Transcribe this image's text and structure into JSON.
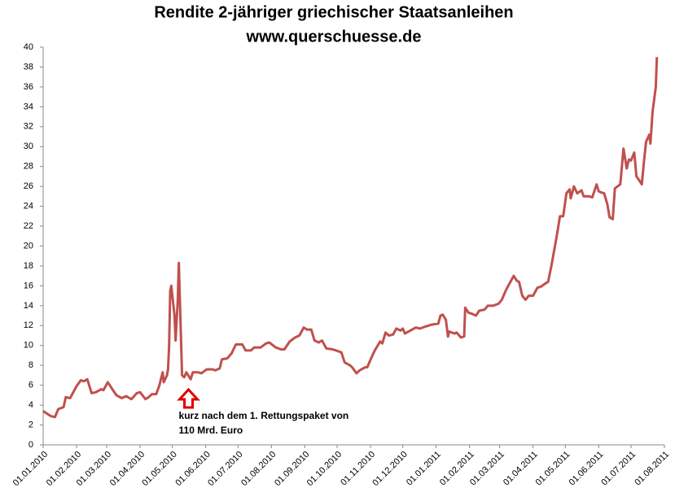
{
  "chart_data": {
    "type": "line",
    "title": "Rendite 2-jähriger griechischer Staatsanleihen",
    "subtitle": "www.querschuesse.de",
    "annotation_lines": [
      "kurz nach dem 1. Rettungspaket von",
      "110 Mrd. Euro"
    ],
    "annotation_x": "2010-05-16",
    "grid": false,
    "xlim": [
      "2010-01-01",
      "2011-08-01"
    ],
    "xticks": [
      {
        "value": "2010-01-01",
        "label": "01.01.2010"
      },
      {
        "value": "2010-02-01",
        "label": "01.02.2010"
      },
      {
        "value": "2010-03-01",
        "label": "01.03.2010"
      },
      {
        "value": "2010-04-01",
        "label": "01.04.2010"
      },
      {
        "value": "2010-05-01",
        "label": "01.05.2010"
      },
      {
        "value": "2010-06-01",
        "label": "01.06.2010"
      },
      {
        "value": "2010-07-01",
        "label": "01.07.2010"
      },
      {
        "value": "2010-08-01",
        "label": "01.08.2010"
      },
      {
        "value": "2010-09-01",
        "label": "01.09.2010"
      },
      {
        "value": "2010-10-01",
        "label": "01.10.2010"
      },
      {
        "value": "2010-11-01",
        "label": "01.11.2010"
      },
      {
        "value": "2010-12-01",
        "label": "01.12.2010"
      },
      {
        "value": "2011-01-01",
        "label": "01.01.2011"
      },
      {
        "value": "2011-02-01",
        "label": "01.02.2011"
      },
      {
        "value": "2011-03-01",
        "label": "01.03.2011"
      },
      {
        "value": "2011-04-01",
        "label": "01.04.2011"
      },
      {
        "value": "2011-05-01",
        "label": "01.05.2011"
      },
      {
        "value": "2011-06-01",
        "label": "01.06.2011"
      },
      {
        "value": "2011-07-01",
        "label": "01.07.2011"
      },
      {
        "value": "2011-08-01",
        "label": "01.08.2011"
      }
    ],
    "ylim": [
      0,
      40
    ],
    "yticks": [
      0,
      2,
      4,
      6,
      8,
      10,
      12,
      14,
      16,
      18,
      20,
      22,
      24,
      26,
      28,
      30,
      32,
      34,
      36,
      38,
      40
    ],
    "x": [
      "2010-01-01",
      "2010-01-08",
      "2010-01-12",
      "2010-01-15",
      "2010-01-20",
      "2010-01-22",
      "2010-01-26",
      "2010-02-01",
      "2010-02-05",
      "2010-02-08",
      "2010-02-11",
      "2010-02-15",
      "2010-02-19",
      "2010-02-24",
      "2010-02-26",
      "2010-03-02",
      "2010-03-05",
      "2010-03-10",
      "2010-03-15",
      "2010-03-19",
      "2010-03-24",
      "2010-03-29",
      "2010-04-01",
      "2010-04-06",
      "2010-04-09",
      "2010-04-12",
      "2010-04-16",
      "2010-04-19",
      "2010-04-22",
      "2010-04-23",
      "2010-04-26",
      "2010-04-27",
      "2010-04-28",
      "2010-04-29",
      "2010-04-30",
      "2010-05-03",
      "2010-05-04",
      "2010-05-06",
      "2010-05-07",
      "2010-05-10",
      "2010-05-12",
      "2010-05-14",
      "2010-05-18",
      "2010-05-20",
      "2010-05-25",
      "2010-05-28",
      "2010-06-02",
      "2010-06-07",
      "2010-06-10",
      "2010-06-14",
      "2010-06-16",
      "2010-06-21",
      "2010-06-25",
      "2010-06-29",
      "2010-07-05",
      "2010-07-08",
      "2010-07-13",
      "2010-07-16",
      "2010-07-22",
      "2010-07-27",
      "2010-07-30",
      "2010-08-05",
      "2010-08-10",
      "2010-08-13",
      "2010-08-18",
      "2010-08-23",
      "2010-08-27",
      "2010-08-31",
      "2010-09-03",
      "2010-09-07",
      "2010-09-10",
      "2010-09-14",
      "2010-09-17",
      "2010-09-21",
      "2010-09-27",
      "2010-09-30",
      "2010-10-05",
      "2010-10-08",
      "2010-10-13",
      "2010-10-15",
      "2010-10-19",
      "2010-10-22",
      "2010-10-27",
      "2010-10-29",
      "2010-11-02",
      "2010-11-05",
      "2010-11-10",
      "2010-11-12",
      "2010-11-15",
      "2010-11-18",
      "2010-11-22",
      "2010-11-25",
      "2010-11-29",
      "2010-12-01",
      "2010-12-03",
      "2010-12-08",
      "2010-12-13",
      "2010-12-17",
      "2010-12-22",
      "2010-12-28",
      "2011-01-03",
      "2011-01-05",
      "2011-01-07",
      "2011-01-10",
      "2011-01-12",
      "2011-01-13",
      "2011-01-18",
      "2011-01-20",
      "2011-01-24",
      "2011-01-27",
      "2011-01-28",
      "2011-01-31",
      "2011-02-03",
      "2011-02-07",
      "2011-02-10",
      "2011-02-15",
      "2011-02-18",
      "2011-02-23",
      "2011-02-28",
      "2011-03-03",
      "2011-03-07",
      "2011-03-10",
      "2011-03-14",
      "2011-03-17",
      "2011-03-19",
      "2011-03-22",
      "2011-03-25",
      "2011-03-28",
      "2011-04-01",
      "2011-04-05",
      "2011-04-08",
      "2011-04-12",
      "2011-04-15",
      "2011-04-18",
      "2011-04-21",
      "2011-04-23",
      "2011-04-26",
      "2011-04-29",
      "2011-05-02",
      "2011-05-05",
      "2011-05-06",
      "2011-05-09",
      "2011-05-12",
      "2011-05-16",
      "2011-05-18",
      "2011-05-23",
      "2011-05-26",
      "2011-05-30",
      "2011-06-01",
      "2011-06-03",
      "2011-06-06",
      "2011-06-09",
      "2011-06-11",
      "2011-06-14",
      "2011-06-16",
      "2011-06-21",
      "2011-06-24",
      "2011-06-27",
      "2011-06-29",
      "2011-07-01",
      "2011-07-04",
      "2011-07-06",
      "2011-07-08",
      "2011-07-11",
      "2011-07-13",
      "2011-07-15",
      "2011-07-18",
      "2011-07-19",
      "2011-07-21",
      "2011-07-24",
      "2011-07-25"
    ],
    "series": [
      {
        "name": "Rendite",
        "color": "#c0504d",
        "values": [
          3.4,
          2.9,
          2.8,
          3.6,
          3.8,
          4.8,
          4.7,
          5.9,
          6.5,
          6.4,
          6.6,
          5.2,
          5.3,
          5.6,
          5.5,
          6.3,
          5.8,
          5.0,
          4.7,
          4.9,
          4.6,
          5.2,
          5.3,
          4.6,
          4.8,
          5.1,
          5.1,
          6.0,
          7.3,
          6.3,
          7.0,
          7.6,
          10.0,
          15.5,
          16.0,
          13.0,
          10.5,
          14.5,
          18.3,
          7.0,
          6.8,
          7.3,
          6.6,
          7.3,
          7.3,
          7.2,
          7.6,
          7.6,
          7.5,
          7.7,
          8.6,
          8.7,
          9.2,
          10.1,
          10.1,
          9.5,
          9.5,
          9.8,
          9.8,
          10.2,
          10.3,
          9.8,
          9.6,
          9.6,
          10.4,
          10.8,
          11.0,
          11.8,
          11.6,
          11.6,
          10.5,
          10.3,
          10.5,
          9.7,
          9.6,
          9.5,
          9.3,
          8.3,
          8.0,
          7.8,
          7.2,
          7.5,
          7.8,
          7.8,
          8.8,
          9.5,
          10.4,
          10.2,
          11.3,
          11.0,
          11.1,
          11.7,
          11.5,
          11.7,
          11.2,
          11.5,
          11.8,
          11.7,
          11.9,
          12.1,
          12.2,
          13.0,
          13.1,
          12.6,
          10.9,
          11.4,
          11.2,
          11.3,
          10.8,
          10.9,
          13.8,
          13.3,
          13.2,
          13.0,
          13.5,
          13.6,
          14.0,
          14.0,
          14.2,
          14.6,
          15.6,
          16.2,
          17.0,
          16.5,
          16.4,
          15.0,
          14.6,
          15.0,
          15.0,
          15.8,
          15.9,
          16.2,
          16.4,
          18.0,
          19.8,
          21.0,
          23.0,
          23.0,
          25.3,
          25.7,
          24.8,
          26.0,
          25.3,
          25.6,
          25.0,
          25.0,
          24.9,
          26.2,
          25.5,
          25.4,
          25.3,
          24.2,
          22.9,
          22.7,
          25.8,
          26.2,
          29.8,
          27.8,
          28.7,
          28.6,
          29.4,
          27.0,
          26.7,
          26.2,
          28.5,
          30.5,
          31.2,
          30.3,
          33.5,
          36.0,
          39.0
        ]
      }
    ]
  }
}
